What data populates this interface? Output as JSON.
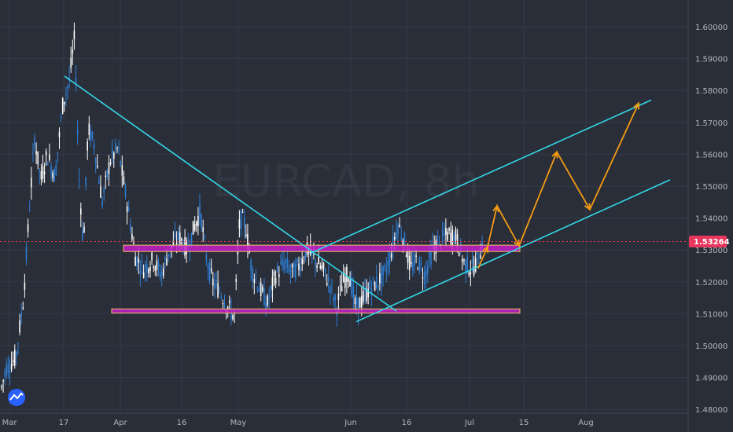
{
  "chart_data": {
    "type": "candlestick",
    "symbol": "EURCAD",
    "timeframe": "8h",
    "watermark": "EURCAD, 8h",
    "current_price": "1.53264",
    "y_range": [
      1.478,
      1.608
    ],
    "y_ticks": [
      "1.60000",
      "1.59000",
      "1.58000",
      "1.57000",
      "1.56000",
      "1.55000",
      "1.54000",
      "1.53000",
      "1.52000",
      "1.51000",
      "1.50000",
      "1.49000",
      "1.48000"
    ],
    "x_ticks": [
      "Mar",
      "17",
      "Apr",
      "16",
      "May",
      "Jun",
      "16",
      "Jul",
      "15",
      "Aug"
    ],
    "colors": {
      "background": "#2a2e39",
      "grid": "#343947",
      "up_candle": "#ffffff",
      "down_candle": "#2d7dd2",
      "trendline": "#33d6e6",
      "zone_fill": "#c31fc9",
      "zone_border": "#f0c060",
      "projection": "#f39c12",
      "price_marker": "#e8365d"
    },
    "support_resistance_zones": [
      {
        "name": "resistance zone",
        "top": 1.5315,
        "bottom": 1.5295
      },
      {
        "name": "support zone",
        "top": 1.5115,
        "bottom": 1.5102
      }
    ],
    "trendlines": [
      {
        "name": "descending trendline",
        "from_price": 1.5845,
        "to_price": 1.5108
      },
      {
        "name": "channel upper",
        "from_price": 1.529,
        "to_price": 1.577
      },
      {
        "name": "channel lower",
        "from_price": 1.5075,
        "to_price": 1.552
      }
    ],
    "projection_prices": [
      1.5242,
      1.531,
      1.5438,
      1.5313,
      1.5607,
      1.5427,
      1.576
    ]
  }
}
